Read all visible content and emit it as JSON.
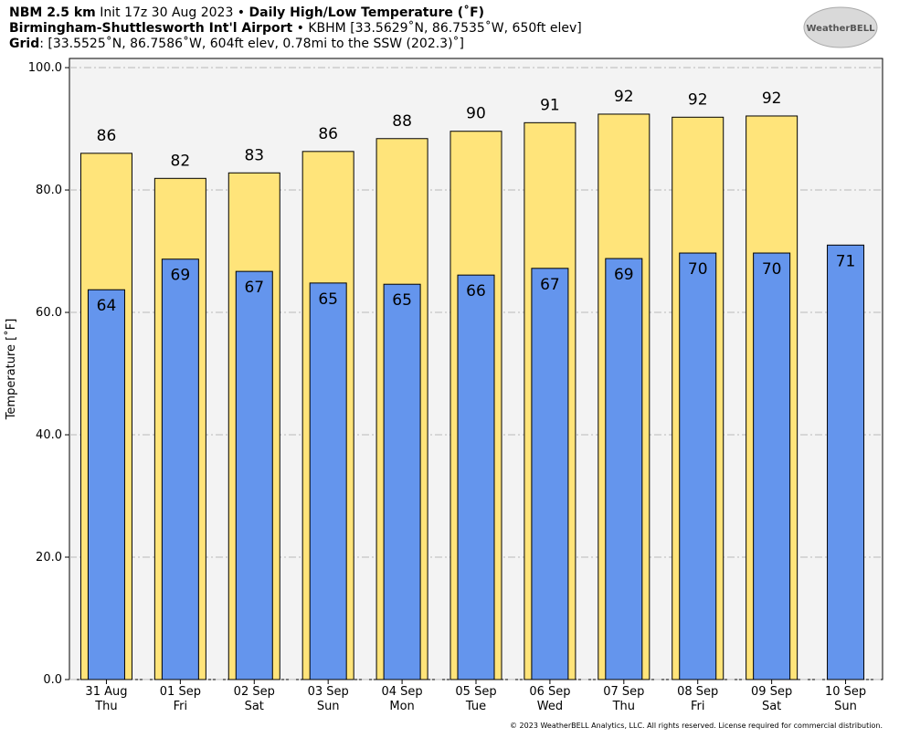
{
  "chart_data": {
    "type": "bar",
    "title_lines": [
      [
        {
          "text": "NBM 2.5 km",
          "bold": true
        },
        {
          "text": " Init 17z 30 Aug 2023 • ",
          "bold": false
        },
        {
          "text": "Daily High/Low Temperature (˚F)",
          "bold": true
        }
      ],
      [
        {
          "text": "Birmingham-Shuttlesworth Int'l Airport",
          "bold": true
        },
        {
          "text": " • KBHM [33.5629˚N, 86.7535˚W, 650ft elev]",
          "bold": false
        }
      ],
      [
        {
          "text": "Grid",
          "bold": true
        },
        {
          "text": ": [33.5525˚N, 86.7586˚W, 604ft elev, 0.78mi to the SSW (202.3)˚]",
          "bold": false
        }
      ]
    ],
    "logo_text": "WeatherBELL",
    "footer": "© 2023 WeatherBELL Analytics, LLC. All rights reserved. License required for commercial distribution.",
    "ylabel": "Temperature [˚F]",
    "categories": [
      "31 Aug",
      "01 Sep",
      "02 Sep",
      "03 Sep",
      "04 Sep",
      "05 Sep",
      "06 Sep",
      "07 Sep",
      "08 Sep",
      "09 Sep",
      "10 Sep"
    ],
    "category_days": [
      "Thu",
      "Fri",
      "Sat",
      "Sun",
      "Mon",
      "Tue",
      "Wed",
      "Thu",
      "Fri",
      "Sat",
      "Sun"
    ],
    "series": [
      {
        "name": "High",
        "color": "#ffe47a",
        "values": [
          86.0,
          81.9,
          82.8,
          86.3,
          88.4,
          89.6,
          91.0,
          92.4,
          91.9,
          92.1,
          null
        ],
        "value_labels": [
          "86",
          "82",
          "83",
          "86",
          "88",
          "90",
          "91",
          "92",
          "92",
          "92",
          null
        ]
      },
      {
        "name": "Low",
        "color": "#6495ed",
        "values": [
          63.7,
          68.7,
          66.7,
          64.8,
          64.6,
          66.1,
          67.2,
          68.8,
          69.7,
          69.7,
          71.0
        ],
        "value_labels": [
          "64",
          "69",
          "67",
          "65",
          "65",
          "66",
          "67",
          "69",
          "70",
          "70",
          "71"
        ]
      }
    ],
    "ylim": [
      0,
      101.5
    ],
    "yticks": [
      {
        "value": 0,
        "label": "0.0"
      },
      {
        "value": 20,
        "label": "20.0"
      },
      {
        "value": 40,
        "label": "40.0"
      },
      {
        "value": 60,
        "label": "60.0"
      },
      {
        "value": 80,
        "label": "80.0"
      },
      {
        "value": 100,
        "label": "100.0"
      }
    ],
    "grid": true,
    "plot_background": "#f3f3f3"
  }
}
